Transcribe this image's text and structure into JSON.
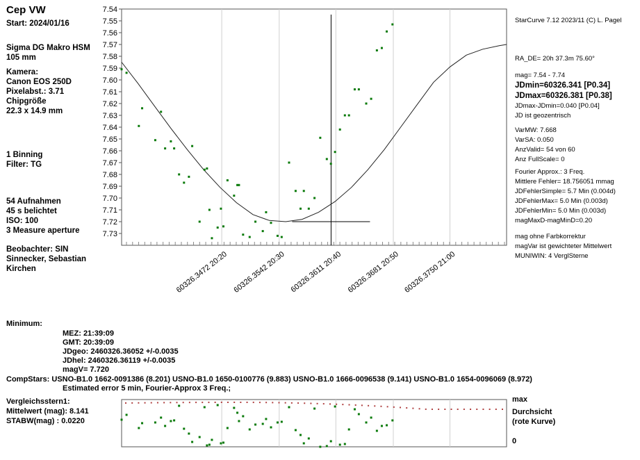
{
  "left_panel": {
    "title": "Cep VW",
    "start": "Start: 2024/01/16",
    "lens1": "Sigma DG Makro HSM",
    "lens2": "105 mm",
    "camera_label": "Kamera:",
    "camera": "Canon EOS 250D",
    "pixel": "Pixelabst.: 3.71",
    "chip_label": "Chipgröße",
    "chip": "22.3 x 14.9 mm",
    "binning": "1 Binning",
    "filter": "Filter: TG",
    "frames": "54 Aufnahmen",
    "exposure": "45 s belichtet",
    "iso": "ISO: 100",
    "measure": "3 Measure aperture",
    "observer": "Beobachter:  SIN",
    "observer_name1": "Sinnecker, Sebastian",
    "observer_name2": "Kirchen"
  },
  "right_panel": {
    "header": "StarCurve 7.12  2023/11  (C) L. Pagel",
    "ra_de": "RA_DE= 20h 37.3m 75.60°",
    "mag": "mag= 7.54 - 7.74",
    "jdmin": "JDmin=60326.341 [P0.34]",
    "jdmax": "JDmax=60326.381 [P0.38]",
    "jddiff": "JDmax-JDmin=0.040 [P0.04]",
    "jdgeo": "JD ist geozentrisch",
    "varmw": "VarMW: 7.668",
    "varsa": "VarSA: 0.050",
    "anzvalid": "AnzValid= 54 von 60",
    "anzfull": "Anz FullScale= 0",
    "fourier": "Fourier Approx.: 3 Freq.",
    "mittlere": "Mittlere Fehler= 18.756051 mmag",
    "jdsimple": "JDFehlerSimple=    5.7 Min (0.004d)",
    "jdmaxerr": "JDFehlerMax=    5.0 Min (0.003d)",
    "jdminerr": "JDFehlerMin=    5.0 Min (0.003d)",
    "magmaxd": "magMaxD-magMinD=0.20",
    "farb": "mag ohne Farbkorrektur",
    "magvar": "magVar ist gewichteter Mittelwert",
    "muniwin": "MUNIWIN: 4 VerglSterne"
  },
  "minimum": {
    "label": "Minimum:",
    "mez": "MEZ:   21:39:09",
    "gmt": "GMT:   20:39:09",
    "jdgeo": "JDgeo: 2460326.36052   +/-0.0035",
    "jdhel": "JDhel: 2460326.36119   +/-0.0035",
    "magv": "magV=        7.720",
    "compstars": "CompStars: USNO-B1.0 1662-0091386 (8.201) USNO-B1.0 1650-0100776 (9.883) USNO-B1.0 1666-0096538 (9.141) USNO-B1.0 1654-0096069 (8.972)",
    "estimated": "Estimated error 5 min,  Fourier-Approx 3 Freq.;"
  },
  "comparison": {
    "title": "Vergleichsstern1:",
    "mean": "Mittelwert (mag):  8.141",
    "stdev": "STABW(mag)   :  0.0220",
    "max_label": "max",
    "durchsicht1": "Durchsicht",
    "durchsicht2": "(rote Kurve)",
    "zero_label": "0"
  },
  "chart_data": {
    "type": "scatter",
    "title": "",
    "xlabel": "",
    "ylabel": "",
    "ylim": [
      7.54,
      7.74
    ],
    "y_inverted": true,
    "y_ticks": [
      "7.54",
      "7.55",
      "7.56",
      "7.57",
      "7.58",
      "7.59",
      "7.60",
      "7.61",
      "7.62",
      "7.63",
      "7.64",
      "7.65",
      "7.66",
      "7.67",
      "7.68",
      "7.69",
      "7.70",
      "7.71",
      "7.72",
      "7.73"
    ],
    "xlim": [
      60326.335,
      60326.3819
    ],
    "x_ticks": [
      {
        "jd": 60326.3472,
        "label": "60326.3472  20:20"
      },
      {
        "jd": 60326.3542,
        "label": "60326.3542  20:30"
      },
      {
        "jd": 60326.3611,
        "label": "60326.3611  20:40"
      },
      {
        "jd": 60326.3681,
        "label": "60326.3681  20:50"
      },
      {
        "jd": 60326.375,
        "label": "60326.3750  21:00"
      }
    ],
    "grid": true,
    "minimum_marker": {
      "jd": 60326.36052,
      "mag": 7.72
    },
    "series": [
      {
        "type": "points",
        "x": [
          60326.335,
          60326.3356,
          60326.3371,
          60326.3375,
          60326.3391,
          60326.3398,
          60326.3403,
          60326.341,
          60326.3414,
          60326.342,
          60326.3426,
          60326.3432,
          60326.3436,
          60326.3445,
          60326.3451,
          60326.3454,
          60326.3457,
          60326.346,
          60326.3467,
          60326.3471,
          60326.3474,
          60326.3479,
          60326.3487,
          60326.3491,
          60326.3493,
          60326.3498,
          60326.3506,
          60326.3513,
          60326.3522,
          60326.3526,
          60326.3532,
          60326.354,
          60326.3545,
          60326.3554,
          60326.3562,
          60326.3568,
          60326.3572,
          60326.3578,
          60326.3585,
          60326.3592,
          60326.36,
          60326.3605,
          60326.361,
          60326.3616,
          60326.3622,
          60326.3627,
          60326.3634,
          60326.3639,
          60326.3648,
          60326.3654,
          60326.3661,
          60326.3667,
          60326.3673,
          60326.368
        ],
        "y": [
          7.591,
          7.594,
          7.639,
          7.624,
          7.651,
          7.627,
          7.658,
          7.652,
          7.658,
          7.68,
          7.687,
          7.682,
          7.656,
          7.72,
          7.676,
          7.675,
          7.71,
          7.734,
          7.725,
          7.709,
          7.724,
          7.685,
          7.698,
          7.689,
          7.689,
          7.731,
          7.733,
          7.72,
          7.728,
          7.712,
          7.721,
          7.732,
          7.733,
          7.67,
          7.694,
          7.709,
          7.694,
          7.709,
          7.7,
          7.649,
          7.667,
          7.671,
          7.661,
          7.642,
          7.63,
          7.63,
          7.608,
          7.608,
          7.62,
          7.616,
          7.575,
          7.573,
          7.559,
          7.553
        ]
      },
      {
        "type": "fourier_fit",
        "x": [
          60326.335,
          60326.337,
          60326.339,
          60326.341,
          60326.343,
          60326.345,
          60326.347,
          60326.349,
          60326.351,
          60326.353,
          60326.355,
          60326.357,
          60326.359,
          60326.361,
          60326.363,
          60326.365,
          60326.367,
          60326.369,
          60326.371,
          60326.373,
          60326.375,
          60326.377,
          60326.379,
          60326.381,
          60326.3819
        ],
        "y": [
          7.585,
          7.603,
          7.622,
          7.641,
          7.659,
          7.676,
          7.691,
          7.704,
          7.714,
          7.719,
          7.72,
          7.718,
          7.712,
          7.703,
          7.691,
          7.676,
          7.659,
          7.64,
          7.621,
          7.602,
          7.589,
          7.579,
          7.574,
          7.571,
          7.57
        ]
      }
    ]
  }
}
